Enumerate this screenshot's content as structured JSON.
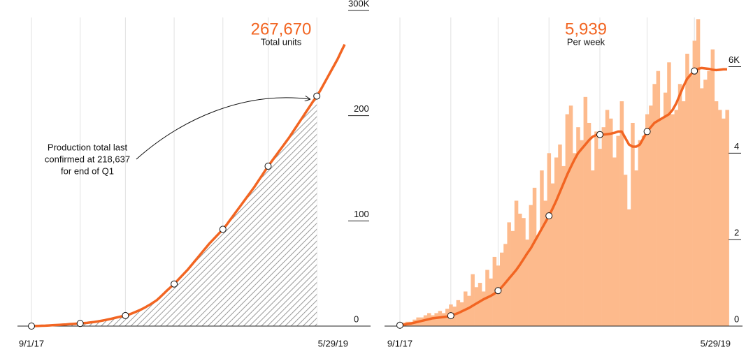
{
  "chart_data": [
    {
      "type": "line",
      "annotation_value": "267,670",
      "annotation_label": "Total units",
      "note": [
        "Production total last",
        "confirmed at 218,637",
        "for end of Q1"
      ],
      "categories": [
        "9/1/17",
        null,
        null,
        null,
        null,
        null,
        null,
        null,
        null,
        null,
        null,
        null,
        null,
        null,
        null,
        null,
        null,
        null,
        null,
        null,
        null,
        null,
        null,
        null,
        null,
        null,
        null,
        null,
        null,
        null,
        null,
        null,
        null,
        null,
        null,
        null,
        null,
        null,
        null,
        null,
        null,
        null,
        null,
        null,
        null,
        null,
        null,
        null,
        null,
        null,
        null,
        null,
        null,
        null,
        null,
        null,
        null,
        null,
        null,
        null,
        null,
        null,
        null,
        null,
        null,
        null,
        null,
        null,
        null,
        null,
        null,
        null,
        null,
        null,
        null,
        null,
        null,
        null,
        null,
        null,
        null,
        null,
        null,
        null,
        null,
        null,
        null,
        null,
        null,
        null,
        "5/29/19"
      ],
      "values": [
        0,
        0.1,
        0.2,
        0.3,
        0.4,
        0.6,
        0.8,
        1.0,
        1.2,
        1.4,
        1.6,
        1.9,
        2.1,
        2.3,
        2.5,
        2.8,
        3.1,
        3.5,
        3.9,
        4.4,
        5.0,
        5.6,
        6.3,
        7.0,
        7.8,
        8.6,
        9.3,
        10,
        11,
        12.2,
        13.6,
        15,
        16.6,
        18.4,
        20.3,
        22.4,
        24.6,
        27.6,
        30.8,
        34,
        37,
        40,
        43.5,
        47,
        50.5,
        54,
        58,
        62,
        66,
        70,
        74,
        78,
        81.5,
        85,
        88.5,
        92,
        96,
        100.5,
        105,
        109.5,
        114,
        118.5,
        123,
        127.5,
        132,
        137,
        142,
        147,
        152,
        156.5,
        161,
        165.5,
        170,
        174.5,
        179,
        184,
        189,
        194,
        199,
        204,
        209,
        214,
        218.637,
        224,
        230,
        236,
        242,
        248,
        254,
        261,
        267.67
      ],
      "color": "#f26522",
      "hatch": true,
      "marker_indices": [
        0,
        14,
        27,
        41,
        55,
        68,
        82
      ],
      "ylim": [
        0,
        300
      ],
      "yticks": [
        0,
        100,
        200,
        {
          "value": 300,
          "label": "300K"
        }
      ]
    },
    {
      "type": "bar",
      "annotation_value": "5,939",
      "annotation_label": "Per week",
      "categories": [
        "9/1/17",
        null,
        null,
        null,
        null,
        null,
        null,
        null,
        null,
        null,
        null,
        null,
        null,
        null,
        null,
        null,
        null,
        null,
        null,
        null,
        null,
        null,
        null,
        null,
        null,
        null,
        null,
        null,
        null,
        null,
        null,
        null,
        null,
        null,
        null,
        null,
        null,
        null,
        null,
        null,
        null,
        null,
        null,
        null,
        null,
        null,
        null,
        null,
        null,
        null,
        null,
        null,
        null,
        null,
        null,
        null,
        null,
        null,
        null,
        null,
        null,
        null,
        null,
        null,
        null,
        null,
        null,
        null,
        null,
        null,
        null,
        null,
        null,
        null,
        null,
        null,
        null,
        null,
        null,
        null,
        null,
        null,
        null,
        null,
        null,
        null,
        null,
        null,
        null,
        null,
        "5/29/19"
      ],
      "series": [
        {
          "type": "bar",
          "color": "#fdba8c",
          "values": [
            0.05,
            0.08,
            0.1,
            0.1,
            0.15,
            0.2,
            0.2,
            0.25,
            0.3,
            0.25,
            0.3,
            0.35,
            0.3,
            0.4,
            0.5,
            0.45,
            0.6,
            0.55,
            0.8,
            0.7,
            1.2,
            0.9,
            1.0,
            0.8,
            1.3,
            1.1,
            1.6,
            1.4,
            1.7,
            1.9,
            2.4,
            2.2,
            2.9,
            2.6,
            2.5,
            2.0,
            2.8,
            3.2,
            2.1,
            3.6,
            2.9,
            4.0,
            3.3,
            3.9,
            4.2,
            3.7,
            4.9,
            5.1,
            4.0,
            4.6,
            4.3,
            5.3,
            4.7,
            3.6,
            4.5,
            4.1,
            4.6,
            5.0,
            4.8,
            3.9,
            4.4,
            5.2,
            3.5,
            2.7,
            4.7,
            3.6,
            4.3,
            4.4,
            4.9,
            5.1,
            5.6,
            5.9,
            4.8,
            5.4,
            6.1,
            4.9,
            5.0,
            5.6,
            5.2,
            6.3,
            5.8,
            6.6,
            7.1,
            5.5,
            5.7,
            5.9,
            6.4,
            5.2,
            5.0,
            4.8,
            5.0
          ]
        },
        {
          "type": "line",
          "color": "#f26522",
          "values": [
            0.02,
            0.03,
            0.05,
            0.06,
            0.08,
            0.1,
            0.12,
            0.14,
            0.16,
            0.18,
            0.19,
            0.2,
            0.21,
            0.22,
            0.24,
            0.27,
            0.3,
            0.34,
            0.38,
            0.42,
            0.47,
            0.52,
            0.57,
            0.62,
            0.66,
            0.7,
            0.75,
            0.82,
            0.9,
            1.0,
            1.1,
            1.2,
            1.3,
            1.42,
            1.55,
            1.68,
            1.8,
            1.95,
            2.1,
            2.25,
            2.4,
            2.55,
            2.72,
            2.9,
            3.1,
            3.3,
            3.5,
            3.68,
            3.85,
            4.0,
            4.1,
            4.2,
            4.3,
            4.38,
            4.42,
            4.43,
            4.43,
            4.44,
            4.45,
            4.47,
            4.5,
            4.5,
            4.35,
            4.2,
            4.15,
            4.15,
            4.2,
            4.35,
            4.5,
            4.6,
            4.7,
            4.75,
            4.8,
            4.85,
            4.9,
            5.0,
            5.15,
            5.35,
            5.55,
            5.72,
            5.82,
            5.9,
            5.95,
            5.97,
            5.96,
            5.95,
            5.93,
            5.92,
            5.93,
            5.94,
            5.939
          ]
        }
      ],
      "marker_indices": [
        0,
        14,
        27,
        41,
        55,
        68,
        81
      ],
      "ylim": [
        0,
        7.3
      ],
      "yticks": [
        0,
        2,
        4,
        {
          "value": 6,
          "label": "6K"
        }
      ]
    }
  ]
}
